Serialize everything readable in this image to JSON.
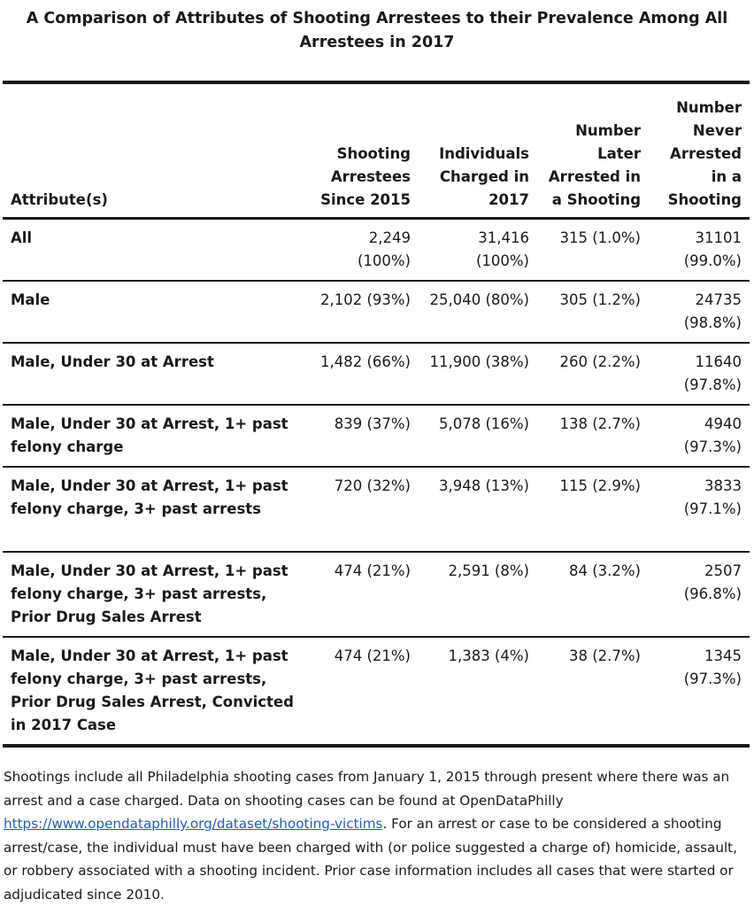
{
  "title": {
    "line1": "A Comparison of Attributes of Shooting Arrestees to their Prevalence Among All",
    "line2": "Arrestees in 2017"
  },
  "table": {
    "headers": [
      "Attribute(s)",
      "Shooting Arrestees Since 2015",
      "Individuals Charged in 2017",
      "Number Later Arrested in a Shooting",
      "Number Never Arrested in a Shooting"
    ],
    "rows": [
      {
        "attribute": "All",
        "shooting_arrestees": "2,249 (100%)",
        "charged_2017": "31,416 (100%)",
        "later_arrested": "315 (1.0%)",
        "never_arrested": "31101 (99.0%)"
      },
      {
        "attribute": "Male",
        "shooting_arrestees": "2,102 (93%)",
        "charged_2017": "25,040 (80%)",
        "later_arrested": "305 (1.2%)",
        "never_arrested": "24735 (98.8%)"
      },
      {
        "attribute": "Male, Under 30 at Arrest",
        "shooting_arrestees": "1,482 (66%)",
        "charged_2017": "11,900 (38%)",
        "later_arrested": "260 (2.2%)",
        "never_arrested": "11640 (97.8%)"
      },
      {
        "attribute": "Male, Under 30 at Arrest, 1+ past felony charge",
        "shooting_arrestees": "839 (37%)",
        "charged_2017": "5,078 (16%)",
        "later_arrested": "138 (2.7%)",
        "never_arrested": "4940 (97.3%)"
      },
      {
        "attribute": "Male, Under 30 at Arrest, 1+ past felony charge, 3+ past arrests",
        "shooting_arrestees": "720 (32%)",
        "charged_2017": "3,948 (13%)",
        "later_arrested": "115 (2.9%)",
        "never_arrested": "3833 (97.1%)"
      },
      {
        "attribute": "Male, Under 30 at Arrest, 1+ past felony charge, 3+ past arrests, Prior Drug Sales Arrest",
        "shooting_arrestees": "474 (21%)",
        "charged_2017": "2,591 (8%)",
        "later_arrested": "84 (3.2%)",
        "never_arrested": "2507 (96.8%)"
      },
      {
        "attribute": "Male, Under 30 at Arrest, 1+ past felony charge, 3+ past arrests, Prior Drug Sales Arrest, Convicted in 2017 Case",
        "shooting_arrestees": "474 (21%)",
        "charged_2017": "1,383 (4%)",
        "later_arrested": "38 (2.7%)",
        "never_arrested": "1345 (97.3%)"
      }
    ]
  },
  "footnote": {
    "text_before_link": "Shootings include all Philadelphia shooting cases from January 1, 2015 through present where there was an arrest and a case charged. Data on shooting cases can be found at OpenDataPhilly ",
    "link_text": "https://www.opendataphilly.org/dataset/shooting-victims",
    "text_after_link": ". For an arrest or case to be considered a shooting arrest/case, the individual must have been charged with (or police suggested a charge of) homicide, assault, or robbery associated with a shooting incident. Prior case information includes all cases that were started or adjudicated since 2010."
  },
  "colors": {
    "text": "#1a1a1a",
    "link": "#1e5fb4",
    "background": "#ffffff"
  }
}
